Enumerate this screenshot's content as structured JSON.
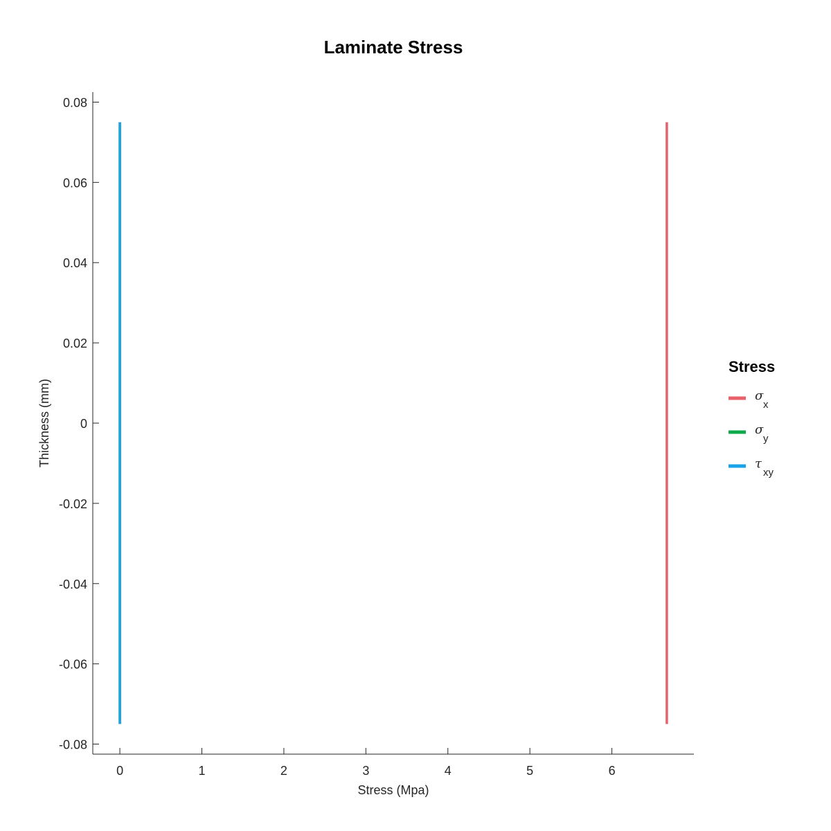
{
  "chart_data": {
    "type": "line",
    "title": "Laminate Stress",
    "xlabel": "Stress (Mpa)",
    "ylabel": "Thickness (mm)",
    "xlim": [
      -0.33,
      7.0
    ],
    "ylim": [
      -0.0825,
      0.0825
    ],
    "xticks": [
      0,
      1,
      2,
      3,
      4,
      5,
      6
    ],
    "xtick_labels": [
      "0",
      "1",
      "2",
      "3",
      "4",
      "5",
      "6"
    ],
    "yticks": [
      0.08,
      0.06,
      0.04,
      0.02,
      0,
      -0.02,
      -0.04,
      -0.06,
      -0.08
    ],
    "ytick_labels": [
      "0.08",
      "0.06",
      "0.04",
      "0.02",
      "0",
      "-0.02",
      "-0.04",
      "-0.06",
      "-0.08"
    ],
    "grid": false,
    "legend": {
      "title": "Stress",
      "placement": "right"
    },
    "series": [
      {
        "symbol": "σ",
        "subscript": "x",
        "color": "#e8616a",
        "x": [
          6.67,
          6.67
        ],
        "y": [
          -0.075,
          0.075
        ]
      },
      {
        "symbol": "σ",
        "subscript": "y",
        "color": "#0fa84a",
        "x": [
          0,
          0
        ],
        "y": [
          -0.075,
          0.075
        ]
      },
      {
        "symbol": "τ",
        "subscript": "xy",
        "color": "#1aa3e8",
        "x": [
          0,
          0
        ],
        "y": [
          -0.075,
          0.075
        ]
      }
    ]
  }
}
